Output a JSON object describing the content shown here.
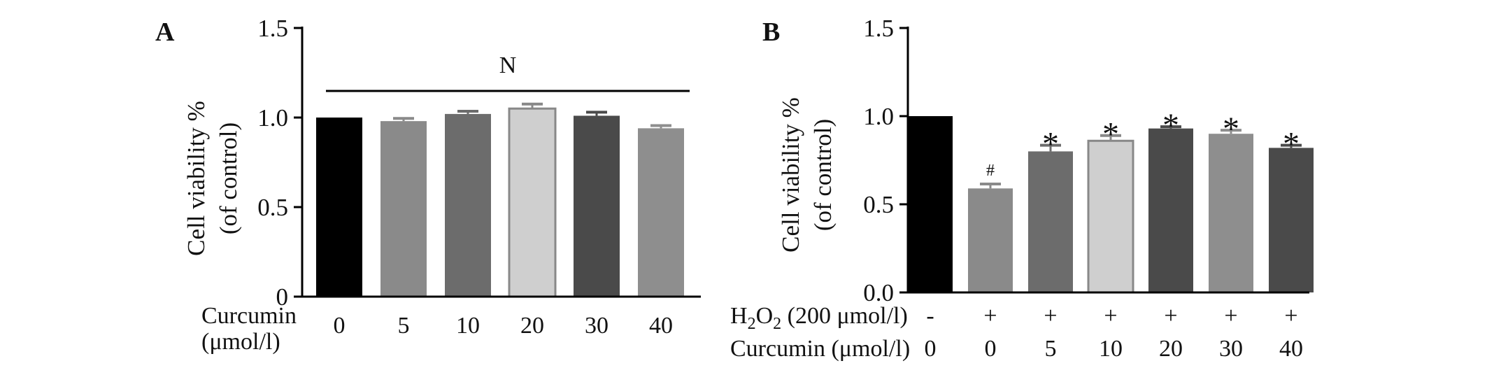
{
  "chart_data": [
    {
      "type": "bar",
      "panel_label": "A",
      "ylabel": "Cell viability %",
      "ylabel2": "(of control)",
      "ylim": [
        0,
        1.5
      ],
      "yticks": [
        "0",
        "0.5",
        "1.0",
        "1.5"
      ],
      "ytick_values": [
        0,
        0.5,
        1.0,
        1.5
      ],
      "row_labels": [
        "Curcumin",
        "(μmol/l)"
      ],
      "categories": [
        "0",
        "5",
        "10",
        "20",
        "30",
        "40"
      ],
      "values": [
        1.0,
        0.98,
        1.02,
        1.05,
        1.01,
        0.94
      ],
      "errors": [
        0.0,
        0.015,
        0.015,
        0.025,
        0.02,
        0.015
      ],
      "colors": [
        "#000000",
        "#8a8a8a",
        "#6c6c6c",
        "#cfcfcf",
        "#4a4a4a",
        "#8e8e8e"
      ],
      "annotation": "N",
      "grid": false
    },
    {
      "type": "bar",
      "panel_label": "B",
      "ylabel": "Cell viability %",
      "ylabel2": "(of control)",
      "ylim": [
        0,
        1.5
      ],
      "yticks": [
        "0.0",
        "0.5",
        "1.0",
        "1.5"
      ],
      "ytick_values": [
        0,
        0.5,
        1.0,
        1.5
      ],
      "row1_label_parts": [
        "H",
        "2",
        "O",
        "2",
        " (200 μmol/l)"
      ],
      "row1_values": [
        "-",
        "+",
        "+",
        "+",
        "+",
        "+",
        "+"
      ],
      "row2_label": "Curcumin (μmol/l)",
      "categories": [
        "0",
        "0",
        "5",
        "10",
        "20",
        "30",
        "40"
      ],
      "values": [
        1.0,
        0.59,
        0.8,
        0.86,
        0.93,
        0.9,
        0.82
      ],
      "errors": [
        0.0,
        0.025,
        0.035,
        0.03,
        0.01,
        0.02,
        0.015
      ],
      "colors": [
        "#000000",
        "#8a8a8a",
        "#6c6c6c",
        "#cfcfcf",
        "#4a4a4a",
        "#8e8e8e",
        "#4a4a4a"
      ],
      "markers": [
        "",
        "#",
        "*",
        "*",
        "*",
        "*",
        "*"
      ],
      "grid": false
    }
  ]
}
